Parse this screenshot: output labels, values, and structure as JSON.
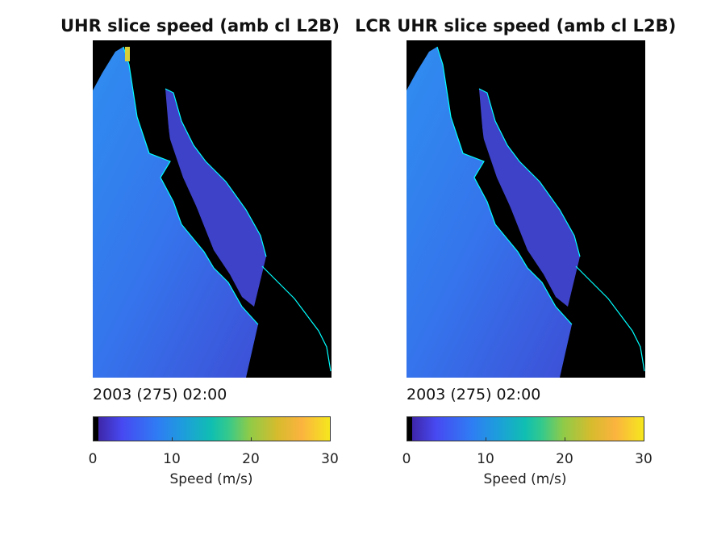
{
  "panels": [
    {
      "title": "UHR slice speed (amb cl L2B)",
      "timestamp": "2003 (275) 02:00",
      "colorbar": {
        "label": "Speed (m/s)",
        "ticks": [
          "0",
          "10",
          "20",
          "30"
        ],
        "range": [
          0,
          30
        ]
      }
    },
    {
      "title": "LCR UHR slice speed (amb cl L2B)",
      "timestamp": "2003 (275) 02:00",
      "colorbar": {
        "label": "Speed (m/s)",
        "ticks": [
          "0",
          "10",
          "20",
          "30"
        ],
        "range": [
          0,
          30
        ]
      }
    }
  ],
  "colors": {
    "land": "#000000",
    "coastline": "#00ffff",
    "ocean_low": "#3b5bdc",
    "ocean_mid": "#2f7ef0",
    "gulf": "#3e3dc8"
  }
}
